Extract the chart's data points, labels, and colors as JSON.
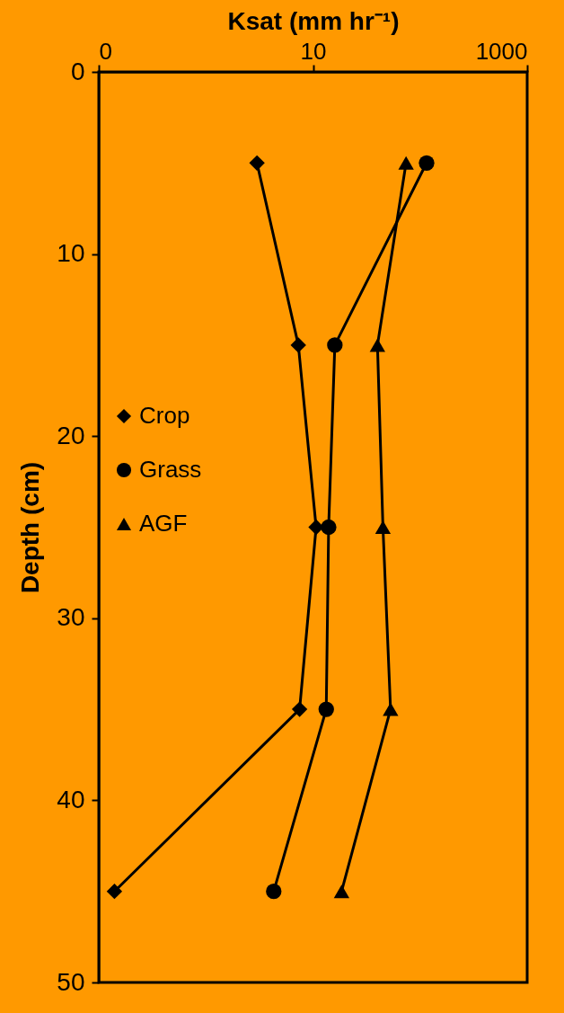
{
  "chart_data": {
    "type": "line",
    "xlabel": "Ksat (mm hr⁻¹)",
    "ylabel": "Depth (cm)",
    "xlim": [
      0.1,
      1000
    ],
    "xticks": [
      {
        "value": 0.1,
        "label": "0"
      },
      10,
      {
        "value": 1000,
        "label": "1000"
      }
    ],
    "log": "x",
    "ylim": [
      50,
      0
    ],
    "yticks": [
      0,
      10,
      20,
      30,
      40,
      50
    ],
    "grid": false,
    "legend": "left",
    "line_style": "solid",
    "series": [
      {
        "name": "Crop",
        "color": "#000000",
        "marker": "diamond",
        "x": [
          3.0,
          7.3,
          10.7,
          7.5,
          0.14
        ],
        "values": [
          5,
          15,
          25,
          35,
          45
        ]
      },
      {
        "name": "Grass",
        "color": "#000000",
        "marker": "circle",
        "x": [
          115,
          16,
          14,
          13.3,
          4.3
        ],
        "values": [
          5,
          15,
          25,
          35,
          45
        ]
      },
      {
        "name": "AGF",
        "color": "#000000",
        "marker": "triangle",
        "x": [
          74,
          40,
          45,
          53,
          18.5
        ],
        "values": [
          5,
          15,
          25,
          35,
          45
        ]
      }
    ]
  }
}
